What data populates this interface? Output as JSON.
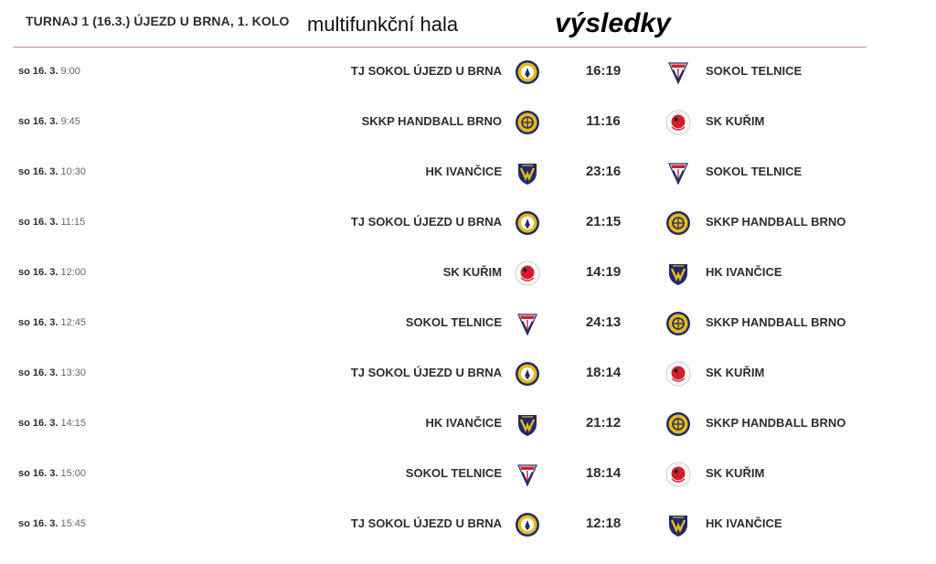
{
  "header": {
    "title": "TURNAJ 1 (16.3.) ÚJEZD U BRNA, 1. KOLO",
    "venue": "multifunkční hala",
    "results": "výsledky"
  },
  "matches": [
    {
      "day": "so 16. 3.",
      "time": "9:00",
      "home": "TJ SOKOL ÚJEZD U BRNA",
      "home_logo": "ujezd-crest-icon",
      "score": "16:19",
      "away": "SOKOL TELNICE",
      "away_logo": "telnice-crest-icon"
    },
    {
      "day": "so 16. 3.",
      "time": "9:45",
      "home": "SKKP HANDBALL BRNO",
      "home_logo": "skkp-crest-icon",
      "score": "11:16",
      "away": "SK KUŘIM",
      "away_logo": "kurim-crest-icon"
    },
    {
      "day": "so 16. 3.",
      "time": "10:30",
      "home": "HK IVANČICE",
      "home_logo": "ivancice-crest-icon",
      "score": "23:16",
      "away": "SOKOL TELNICE",
      "away_logo": "telnice-crest-icon"
    },
    {
      "day": "so 16. 3.",
      "time": "11:15",
      "home": "TJ SOKOL ÚJEZD U BRNA",
      "home_logo": "ujezd-crest-icon",
      "score": "21:15",
      "away": "SKKP HANDBALL BRNO",
      "away_logo": "skkp-crest-icon"
    },
    {
      "day": "so 16. 3.",
      "time": "12:00",
      "home": "SK KUŘIM",
      "home_logo": "kurim-crest-icon",
      "score": "14:19",
      "away": "HK IVANČICE",
      "away_logo": "ivancice-crest-icon"
    },
    {
      "day": "so 16. 3.",
      "time": "12:45",
      "home": "SOKOL TELNICE",
      "home_logo": "telnice-crest-icon",
      "score": "24:13",
      "away": "SKKP HANDBALL BRNO",
      "away_logo": "skkp-crest-icon"
    },
    {
      "day": "so 16. 3.",
      "time": "13:30",
      "home": "TJ SOKOL ÚJEZD U BRNA",
      "home_logo": "ujezd-crest-icon",
      "score": "18:14",
      "away": "SK KUŘIM",
      "away_logo": "kurim-crest-icon"
    },
    {
      "day": "so 16. 3.",
      "time": "14:15",
      "home": "HK IVANČICE",
      "home_logo": "ivancice-crest-icon",
      "score": "21:12",
      "away": "SKKP HANDBALL BRNO",
      "away_logo": "skkp-crest-icon"
    },
    {
      "day": "so 16. 3.",
      "time": "15:00",
      "home": "SOKOL TELNICE",
      "home_logo": "telnice-crest-icon",
      "score": "18:14",
      "away": "SK KUŘIM",
      "away_logo": "kurim-crest-icon"
    },
    {
      "day": "so 16. 3.",
      "time": "15:45",
      "home": "TJ SOKOL ÚJEZD U BRNA",
      "home_logo": "ujezd-crest-icon",
      "score": "12:18",
      "away": "HK IVANČICE",
      "away_logo": "ivancice-crest-icon"
    }
  ],
  "colors": {
    "divider": "#b88aa0",
    "navy": "#1f2a6b",
    "gold": "#e8b914",
    "red": "#d0202a"
  }
}
